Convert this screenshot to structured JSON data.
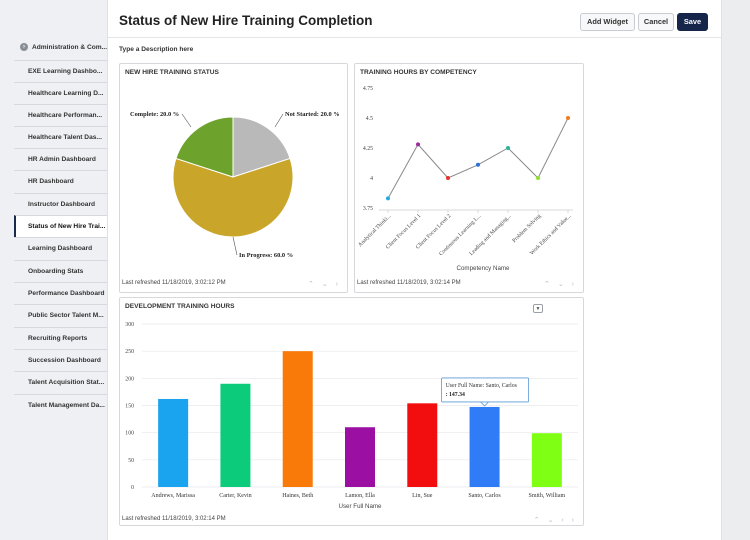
{
  "sidebar": {
    "items": [
      {
        "label": "Administration & Com..."
      },
      {
        "label": "EXE Learning Dashbo..."
      },
      {
        "label": "Healthcare Learning D..."
      },
      {
        "label": "Healthcare Performan..."
      },
      {
        "label": "Healthcare Talent Das..."
      },
      {
        "label": "HR Admin Dashboard"
      },
      {
        "label": "HR Dashboard"
      },
      {
        "label": "Instructor Dashboard"
      },
      {
        "label": "Status of New Hire Trai..."
      },
      {
        "label": "Learning Dashboard"
      },
      {
        "label": "Onboarding Stats"
      },
      {
        "label": "Performance Dashboard"
      },
      {
        "label": "Public Sector Talent M..."
      },
      {
        "label": "Recruiting Reports"
      },
      {
        "label": "Succession Dashboard"
      },
      {
        "label": "Talent Acquisition Stat..."
      },
      {
        "label": "Talent Management Da..."
      }
    ],
    "active_index": 8
  },
  "header": {
    "title": "Status of New Hire Training Completion",
    "add_widget": "Add Widget",
    "cancel": "Cancel",
    "save": "Save"
  },
  "description": "Type a Description here",
  "colors": {
    "save_bg": "#16254a",
    "active_marker": "#1b2a4a"
  },
  "icons": {
    "nav": "chevron-arrows",
    "menu": "caret-down-icon",
    "collapse": "chevron-down-icon"
  },
  "panels": {
    "status": {
      "title": "NEW HIRE TRAINING STATUS",
      "refreshed": "Last refreshed 11/18/2019, 3:02:12 PM"
    },
    "competency": {
      "title": "TRAINING HOURS BY COMPETENCY",
      "refreshed": "Last refreshed 11/18/2019, 3:02:14 PM"
    },
    "development": {
      "title": "DEVELOPMENT TRAINING HOURS",
      "refreshed": "Last refreshed 11/18/2019, 3:02:14 PM"
    }
  },
  "chart_data": [
    {
      "type": "pie",
      "title": "NEW HIRE TRAINING STATUS",
      "slices": [
        {
          "label": "Not Started: 20.0 %",
          "value": 20.0,
          "color": "#b9b9b9"
        },
        {
          "label": "In Progress: 60.0 %",
          "value": 60.0,
          "color": "#c9a62a"
        },
        {
          "label": "Complete: 20.0 %",
          "value": 20.0,
          "color": "#6da22c"
        }
      ]
    },
    {
      "type": "line",
      "title": "TRAINING HOURS BY COMPETENCY",
      "xlabel": "Competency Name",
      "categories": [
        "Analytical Thinki...",
        "Client Focus Level 1",
        "Client Focus Level 2",
        "Continuous Learning L...",
        "Leading and Managing...",
        "Problem Solving",
        "Work Ethics and Value..."
      ],
      "values": [
        3.83,
        4.28,
        4.0,
        4.11,
        4.25,
        4.0,
        4.5
      ],
      "point_colors": [
        "#27a9e1",
        "#9b2c9b",
        "#e8312a",
        "#2f6fd6",
        "#2bb39a",
        "#8ee22a",
        "#f07a1d"
      ],
      "yticks": [
        "4.75",
        "4.5",
        "4.25",
        "4",
        "3.75"
      ],
      "ylim": [
        3.75,
        4.75
      ],
      "line_color": "#8a8a8a"
    },
    {
      "type": "bar",
      "title": "DEVELOPMENT TRAINING HOURS",
      "xlabel": "User Full Name",
      "categories": [
        "Andrews, Marissa",
        "Carter, Kevin",
        "Haines, Beth",
        "Lamon, Ella",
        "Lin, Sue",
        "Santo, Carlos",
        "Smith, William"
      ],
      "values": [
        162,
        190,
        250,
        110,
        154,
        147.34,
        99
      ],
      "colors": [
        "#1aa3ef",
        "#0ccc7c",
        "#fa7a09",
        "#9b0fa3",
        "#f20e0e",
        "#2f7cf6",
        "#7fff13"
      ],
      "yticks": [
        "300",
        "250",
        "200",
        "150",
        "100",
        "50",
        "0"
      ],
      "ylim": [
        0,
        300
      ],
      "tooltip": {
        "line1": "User Full Name: Santo, Carlos",
        "line2": ": 147.34",
        "index": 5
      }
    }
  ]
}
